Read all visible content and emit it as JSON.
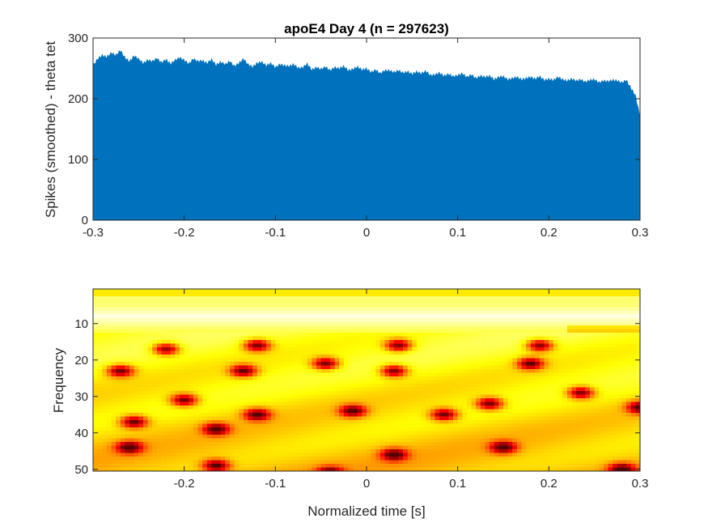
{
  "figure": {
    "background": "#ffffff",
    "axis_color": "#262626"
  },
  "chart_data": [
    {
      "type": "area",
      "title": "apoE4 Day 4 (n = 297623)",
      "xlabel": "",
      "ylabel": "Spikes (smoothed) - theta tet",
      "xlim": [
        -0.3,
        0.3
      ],
      "ylim": [
        0,
        300
      ],
      "xticks": [
        -0.3,
        -0.2,
        -0.1,
        0,
        0.1,
        0.2,
        0.3
      ],
      "xtick_labels": [
        "-0.3",
        "-0.2",
        "-0.1",
        "0",
        "0.1",
        "0.2",
        "0.3"
      ],
      "yticks": [
        0,
        100,
        200,
        300
      ],
      "ytick_labels": [
        "0",
        "100",
        "200",
        "300"
      ],
      "color": "#0072BD",
      "series": [
        {
          "x": [
            -0.3,
            -0.295,
            -0.29,
            -0.285,
            -0.28,
            -0.275,
            -0.27,
            -0.265,
            -0.26,
            -0.255,
            -0.25,
            -0.245,
            -0.24,
            -0.235,
            -0.23,
            -0.225,
            -0.22,
            -0.215,
            -0.21,
            -0.205,
            -0.2,
            -0.195,
            -0.19,
            -0.185,
            -0.18,
            -0.175,
            -0.17,
            -0.165,
            -0.16,
            -0.155,
            -0.15,
            -0.145,
            -0.14,
            -0.135,
            -0.13,
            -0.125,
            -0.12,
            -0.115,
            -0.11,
            -0.105,
            -0.1,
            -0.095,
            -0.09,
            -0.085,
            -0.08,
            -0.075,
            -0.07,
            -0.065,
            -0.06,
            -0.055,
            -0.05,
            -0.045,
            -0.04,
            -0.035,
            -0.03,
            -0.025,
            -0.02,
            -0.015,
            -0.01,
            -0.005,
            0,
            0.005,
            0.01,
            0.015,
            0.02,
            0.025,
            0.03,
            0.035,
            0.04,
            0.045,
            0.05,
            0.055,
            0.06,
            0.065,
            0.07,
            0.075,
            0.08,
            0.085,
            0.09,
            0.095,
            0.1,
            0.105,
            0.11,
            0.115,
            0.12,
            0.125,
            0.13,
            0.135,
            0.14,
            0.145,
            0.15,
            0.155,
            0.16,
            0.165,
            0.17,
            0.175,
            0.18,
            0.185,
            0.19,
            0.195,
            0.2,
            0.205,
            0.21,
            0.215,
            0.22,
            0.225,
            0.23,
            0.235,
            0.24,
            0.245,
            0.25,
            0.255,
            0.26,
            0.265,
            0.27,
            0.275,
            0.28,
            0.285,
            0.29,
            0.295,
            0.3
          ],
          "y": [
            255,
            266,
            272,
            269,
            276,
            272,
            280,
            268,
            262,
            271,
            266,
            259,
            264,
            262,
            267,
            260,
            265,
            258,
            264,
            268,
            264,
            258,
            266,
            262,
            263,
            259,
            265,
            256,
            261,
            257,
            262,
            254,
            259,
            266,
            257,
            253,
            259,
            261,
            255,
            259,
            252,
            257,
            255,
            254,
            257,
            251,
            252,
            258,
            248,
            252,
            249,
            253,
            247,
            252,
            250,
            254,
            247,
            249,
            253,
            248,
            250,
            244,
            248,
            242,
            247,
            247,
            244,
            247,
            243,
            245,
            241,
            245,
            242,
            246,
            239,
            240,
            243,
            238,
            241,
            237,
            239,
            242,
            236,
            240,
            234,
            238,
            236,
            238,
            232,
            236,
            237,
            232,
            234,
            236,
            232,
            234,
            236,
            233,
            237,
            231,
            233,
            231,
            236,
            232,
            230,
            233,
            230,
            232,
            228,
            231,
            232,
            227,
            230,
            229,
            231,
            230,
            227,
            231,
            218,
            206,
            172
          ]
        }
      ]
    },
    {
      "type": "heatmap",
      "title": "",
      "xlabel": "Normalized time [s]",
      "ylabel": "Frequency",
      "xlim": [
        -0.3,
        0.3
      ],
      "ylim": [
        1,
        50
      ],
      "xticks": [
        -0.2,
        -0.1,
        0,
        0.1,
        0.2,
        0.3
      ],
      "xtick_labels": [
        "-0.2",
        "-0.1",
        "0",
        "0.1",
        "0.2",
        "0.3"
      ],
      "yticks": [
        10,
        20,
        30,
        40,
        50
      ],
      "ytick_labels": [
        "10",
        "20",
        "30",
        "40",
        "50"
      ],
      "y_direction": "reversed",
      "colormap": "hot",
      "grid": false,
      "power_peak_frequency": 8,
      "power_minima": [
        {
          "x": -0.27,
          "y": 23
        },
        {
          "x": -0.22,
          "y": 17
        },
        {
          "x": -0.2,
          "y": 31
        },
        {
          "x": -0.255,
          "y": 37
        },
        {
          "x": -0.26,
          "y": 44
        },
        {
          "x": -0.165,
          "y": 39
        },
        {
          "x": -0.165,
          "y": 49
        },
        {
          "x": -0.135,
          "y": 23
        },
        {
          "x": -0.12,
          "y": 16
        },
        {
          "x": -0.12,
          "y": 35
        },
        {
          "x": -0.045,
          "y": 21
        },
        {
          "x": -0.015,
          "y": 34
        },
        {
          "x": -0.04,
          "y": 51
        },
        {
          "x": 0.03,
          "y": 23
        },
        {
          "x": 0.035,
          "y": 16
        },
        {
          "x": 0.03,
          "y": 46
        },
        {
          "x": 0.085,
          "y": 35
        },
        {
          "x": 0.135,
          "y": 32
        },
        {
          "x": 0.15,
          "y": 44
        },
        {
          "x": 0.18,
          "y": 21
        },
        {
          "x": 0.19,
          "y": 16
        },
        {
          "x": 0.235,
          "y": 29
        },
        {
          "x": 0.3,
          "y": 33
        },
        {
          "x": 0.28,
          "y": 50
        }
      ]
    }
  ]
}
